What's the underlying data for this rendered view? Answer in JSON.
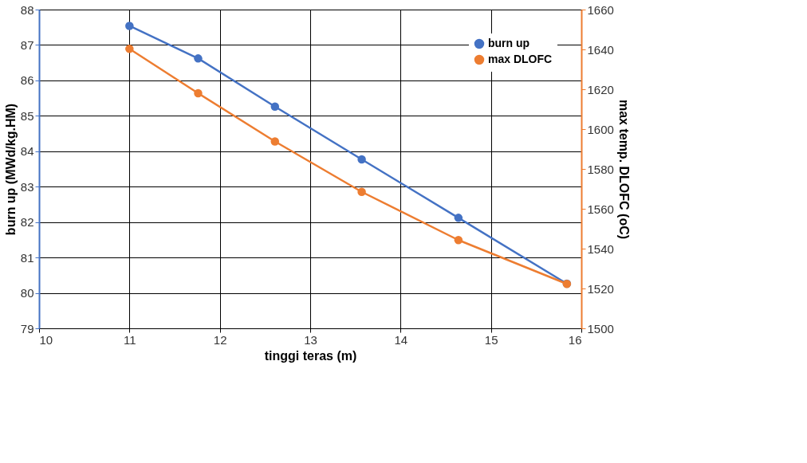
{
  "chart_data": {
    "type": "line",
    "xlabel": "tinggi teras (m)",
    "ylabel": "burn up (MWd/kg.HM)",
    "y2label": "max temp. DLOFC (oC)",
    "x": [
      11.0,
      11.76,
      12.61,
      13.57,
      14.64,
      15.84
    ],
    "series": [
      {
        "name": "burn up",
        "color": "#4472c4",
        "values": [
          87.54,
          86.62,
          85.26,
          83.77,
          82.12,
          80.26
        ]
      },
      {
        "name": "max DLOFC",
        "color": "#ed7d31",
        "axis": "y2",
        "values": [
          1640.3,
          1618.0,
          1593.8,
          1568.5,
          1544.3,
          1522.3
        ]
      }
    ],
    "xlim": [
      10,
      16
    ],
    "xticks": [
      10,
      11,
      12,
      13,
      14,
      15,
      16
    ],
    "ylim": [
      79,
      88
    ],
    "yticks": [
      79,
      80,
      81,
      82,
      83,
      84,
      85,
      86,
      87,
      88
    ],
    "y2lim": [
      1500,
      1660
    ],
    "y2ticks": [
      1500,
      1520,
      1540,
      1560,
      1580,
      1600,
      1620,
      1640,
      1660
    ],
    "grid": true,
    "legend": "top right",
    "marker": "circle",
    "line_style": "solid"
  }
}
